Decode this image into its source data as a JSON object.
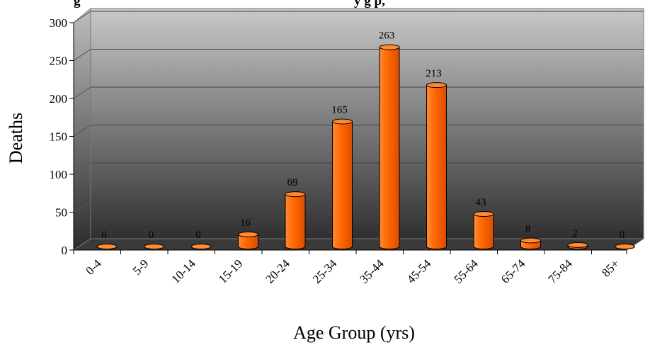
{
  "chart_data": {
    "type": "bar",
    "title": "",
    "visible_title_fragment_left": "g",
    "visible_title_fragment_right": "y g           p,",
    "xlabel": "Age Group (yrs)",
    "ylabel": "Deaths",
    "categories": [
      "0-4",
      "5-9",
      "10-14",
      "15-19",
      "20-24",
      "25-34",
      "35-44",
      "45-54",
      "55-64",
      "65-74",
      "75-84",
      "85+"
    ],
    "values": [
      0,
      0,
      0,
      16,
      69,
      165,
      263,
      213,
      43,
      8,
      2,
      0
    ],
    "data_labels": [
      "0",
      "0",
      "0",
      "16",
      "69",
      "165",
      "263",
      "213",
      "43",
      "8",
      "2",
      "0"
    ],
    "ylim": [
      0,
      300
    ],
    "yticks": [
      0,
      50,
      100,
      150,
      200,
      250,
      300
    ],
    "ytick_labels": [
      "0",
      "50",
      "100",
      "150",
      "200",
      "250",
      "300"
    ],
    "grid": true,
    "legend": "none",
    "colors": {
      "bar": "#ff6600",
      "bar_dark": "#cc4400",
      "bar_top": "#ff8a33",
      "wall_top": "#c8c8c8",
      "wall_bottom": "#303030",
      "floor": "#3a3a3a"
    }
  }
}
